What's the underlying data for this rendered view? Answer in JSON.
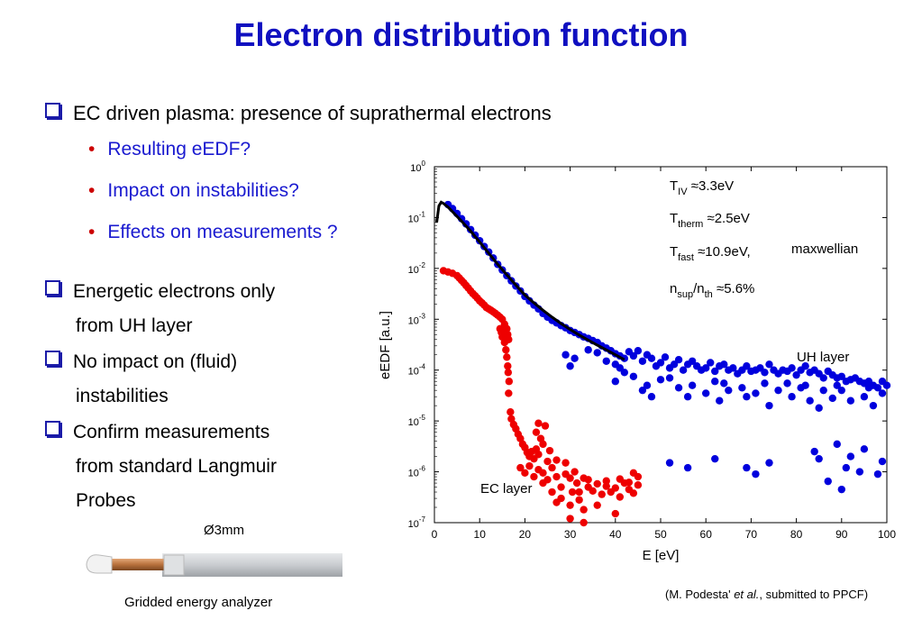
{
  "title": "Electron distribution function",
  "bullet1": "EC driven plasma: presence of suprathermal electrons",
  "sub_bullets": [
    "Resulting eEDF?",
    "Impact on instabilities?",
    "Effects on measurements ?"
  ],
  "left_bullets": [
    {
      "l1": "Energetic electrons only",
      "l2": "from UH layer"
    },
    {
      "l1": "No impact on (fluid)",
      "l2": "instabilities"
    },
    {
      "l1": "Confirm measurements",
      "l2": "from standard Langmuir",
      "l3": "Probes"
    }
  ],
  "probe_label": "Ø3mm",
  "probe_caption": "Gridded energy analyzer",
  "citation": {
    "pre": "(M. Podesta' ",
    "em": "et al.",
    "post": ", submitted to PPCF)"
  },
  "colors": {
    "title": "#1010c0",
    "uh": "#0000dd",
    "ec": "#ee0000",
    "fit": "#000000"
  },
  "chart_data": {
    "type": "scatter",
    "xlabel": "E  [eV]",
    "ylabel": "eEDF  [a.u.]",
    "xlim": [
      0,
      100
    ],
    "ylim": [
      1e-07,
      1
    ],
    "yscale": "log",
    "x_ticks": [
      "0",
      "10",
      "20",
      "30",
      "40",
      "50",
      "60",
      "70",
      "80",
      "90",
      "100"
    ],
    "y_ticks": [
      {
        "base": "10",
        "exp": "0"
      },
      {
        "base": "10",
        "exp": "-1"
      },
      {
        "base": "10",
        "exp": "-2"
      },
      {
        "base": "10",
        "exp": "-3"
      },
      {
        "base": "10",
        "exp": "-4"
      },
      {
        "base": "10",
        "exp": "-5"
      },
      {
        "base": "10",
        "exp": "-6"
      },
      {
        "base": "10",
        "exp": "-7"
      }
    ],
    "annotations": {
      "t_iv": {
        "base": "T",
        "sub": "IV",
        "val": " ≈3.3eV"
      },
      "t_therm": {
        "base": "T",
        "sub": "therm",
        "val": " ≈2.5eV"
      },
      "t_fast": {
        "base": "T",
        "sub": "fast",
        "val": " ≈10.9eV,"
      },
      "maxwellian": "maxwellian",
      "n_ratio": {
        "a": "n",
        "sub1": "sup",
        "mid": "/n",
        "sub2": "th",
        "val": " ≈5.6%"
      },
      "uh_layer": "UH layer",
      "ec_layer": "EC layer"
    },
    "series": [
      {
        "name": "UH layer",
        "color": "#0000dd",
        "points": [
          [
            3,
            0.18
          ],
          [
            4,
            0.15
          ],
          [
            5,
            0.12
          ],
          [
            6,
            0.095
          ],
          [
            7,
            0.075
          ],
          [
            8,
            0.058
          ],
          [
            9,
            0.045
          ],
          [
            10,
            0.035
          ],
          [
            11,
            0.027
          ],
          [
            12,
            0.021
          ],
          [
            13,
            0.016
          ],
          [
            14,
            0.012
          ],
          [
            15,
            0.0093
          ],
          [
            16,
            0.0072
          ],
          [
            17,
            0.0057
          ],
          [
            18,
            0.0045
          ],
          [
            19,
            0.0036
          ],
          [
            20,
            0.0028
          ],
          [
            21,
            0.0023
          ],
          [
            22,
            0.0019
          ],
          [
            23,
            0.0016
          ],
          [
            24,
            0.0013
          ],
          [
            25,
            0.0011
          ],
          [
            26,
            0.00095
          ],
          [
            27,
            0.00085
          ],
          [
            28,
            0.00075
          ],
          [
            29,
            0.00068
          ],
          [
            30,
            0.0006
          ],
          [
            31,
            0.00055
          ],
          [
            32,
            0.0005
          ],
          [
            33,
            0.00045
          ],
          [
            34,
            0.00042
          ],
          [
            35,
            0.00038
          ],
          [
            36,
            0.00035
          ],
          [
            37,
            0.0003
          ],
          [
            38,
            0.00027
          ],
          [
            39,
            0.00024
          ],
          [
            40,
            0.00021
          ],
          [
            41,
            0.00019
          ],
          [
            42,
            0.00017
          ],
          [
            29,
            0.0002
          ],
          [
            31,
            0.00017
          ],
          [
            34,
            0.00025
          ],
          [
            36,
            0.00022
          ],
          [
            38,
            0.00015
          ],
          [
            40,
            0.00013
          ],
          [
            41,
            0.00011
          ],
          [
            43,
            0.00023
          ],
          [
            44,
            0.00019
          ],
          [
            45,
            0.00024
          ],
          [
            46,
            0.00015
          ],
          [
            47,
            0.0002
          ],
          [
            48,
            0.00017
          ],
          [
            49,
            0.00012
          ],
          [
            50,
            0.00014
          ],
          [
            51,
            0.00018
          ],
          [
            52,
            0.00011
          ],
          [
            53,
            0.00013
          ],
          [
            54,
            0.00016
          ],
          [
            55,
            0.0001
          ],
          [
            56,
            0.00013
          ],
          [
            57,
            0.00015
          ],
          [
            58,
            0.00012
          ],
          [
            59,
            0.0001
          ],
          [
            60,
            0.00011
          ],
          [
            61,
            0.00014
          ],
          [
            62,
            9.5e-05
          ],
          [
            63,
            0.00012
          ],
          [
            64,
            0.00013
          ],
          [
            65,
            0.0001
          ],
          [
            66,
            0.00011
          ],
          [
            67,
            8.5e-05
          ],
          [
            68,
            0.0001
          ],
          [
            69,
            0.00012
          ],
          [
            70,
            9.5e-05
          ],
          [
            71,
            0.0001
          ],
          [
            72,
            0.00011
          ],
          [
            73,
            9e-05
          ],
          [
            74,
            0.00013
          ],
          [
            75,
            0.0001
          ],
          [
            76,
            8.5e-05
          ],
          [
            77,
            0.0001
          ],
          [
            78,
            9.5e-05
          ],
          [
            79,
            0.00011
          ],
          [
            80,
            8e-05
          ],
          [
            81,
            0.0001
          ],
          [
            82,
            0.00012
          ],
          [
            83,
            9e-05
          ],
          [
            84,
            0.0001
          ],
          [
            85,
            8.5e-05
          ],
          [
            86,
            7e-05
          ],
          [
            87,
            9.5e-05
          ],
          [
            88,
            8e-05
          ],
          [
            89,
            7e-05
          ],
          [
            90,
            7.5e-05
          ],
          [
            91,
            6e-05
          ],
          [
            92,
            6.5e-05
          ],
          [
            93,
            7e-05
          ],
          [
            94,
            6e-05
          ],
          [
            95,
            5.5e-05
          ],
          [
            96,
            6e-05
          ],
          [
            97,
            5e-05
          ],
          [
            98,
            4.5e-05
          ],
          [
            99,
            6e-05
          ],
          [
            100,
            5e-05
          ],
          [
            30,
            0.00012
          ],
          [
            40,
            6e-05
          ],
          [
            42,
            9e-05
          ],
          [
            46,
            4e-05
          ],
          [
            48,
            3e-05
          ],
          [
            52,
            7e-05
          ],
          [
            54,
            4.5e-05
          ],
          [
            56,
            3e-05
          ],
          [
            60,
            3.5e-05
          ],
          [
            62,
            6e-05
          ],
          [
            63,
            2.5e-05
          ],
          [
            65,
            4e-05
          ],
          [
            68,
            4.5e-05
          ],
          [
            71,
            3.5e-05
          ],
          [
            73,
            5.5e-05
          ],
          [
            74,
            2e-05
          ],
          [
            76,
            4e-05
          ],
          [
            79,
            3e-05
          ],
          [
            81,
            4.5e-05
          ],
          [
            83,
            2.5e-05
          ],
          [
            85,
            1.8e-05
          ],
          [
            86,
            4e-05
          ],
          [
            88,
            2.8e-05
          ],
          [
            90,
            4e-05
          ],
          [
            92,
            2.5e-05
          ],
          [
            95,
            3e-05
          ],
          [
            97,
            2e-05
          ],
          [
            99,
            3.5e-05
          ],
          [
            44,
            7.5e-05
          ],
          [
            47,
            5e-05
          ],
          [
            50,
            6.5e-05
          ],
          [
            57,
            5e-05
          ],
          [
            64,
            5.5e-05
          ],
          [
            69,
            3e-05
          ],
          [
            78,
            5.5e-05
          ],
          [
            82,
            5e-05
          ],
          [
            89,
            5e-05
          ],
          [
            96,
            4.5e-05
          ],
          [
            52,
            1.5e-06
          ],
          [
            56,
            1.2e-06
          ],
          [
            62,
            1.8e-06
          ],
          [
            69,
            1.2e-06
          ],
          [
            71,
            9e-07
          ],
          [
            74,
            1.5e-06
          ],
          [
            84,
            2.5e-06
          ],
          [
            85,
            1.8e-06
          ],
          [
            89,
            3.5e-06
          ],
          [
            91,
            1.2e-06
          ],
          [
            92,
            2e-06
          ],
          [
            94,
            1e-06
          ],
          [
            95,
            2.8e-06
          ],
          [
            98,
            9e-07
          ],
          [
            99,
            1.6e-06
          ],
          [
            90,
            4.5e-07
          ],
          [
            87,
            6.5e-07
          ]
        ]
      },
      {
        "name": "EC layer",
        "color": "#ee0000",
        "points": [
          [
            2,
            0.009
          ],
          [
            3,
            0.0085
          ],
          [
            4,
            0.008
          ],
          [
            5,
            0.0072
          ],
          [
            5.5,
            0.0065
          ],
          [
            6,
            0.0058
          ],
          [
            6.5,
            0.0052
          ],
          [
            7,
            0.0046
          ],
          [
            7.5,
            0.0041
          ],
          [
            8,
            0.0036
          ],
          [
            8.5,
            0.0032
          ],
          [
            9,
            0.0029
          ],
          [
            9.5,
            0.0026
          ],
          [
            10,
            0.0023
          ],
          [
            10.5,
            0.0021
          ],
          [
            11,
            0.0019
          ],
          [
            11.5,
            0.0017
          ],
          [
            12,
            0.0016
          ],
          [
            12.5,
            0.0015
          ],
          [
            13,
            0.0014
          ],
          [
            13.5,
            0.0013
          ],
          [
            14,
            0.0012
          ],
          [
            14.5,
            0.0011
          ],
          [
            15,
            0.001
          ],
          [
            15.5,
            0.0008
          ],
          [
            16,
            0.00065
          ],
          [
            16.2,
            0.0005
          ],
          [
            16.4,
            0.0004
          ],
          [
            14.5,
            0.00065
          ],
          [
            15,
            0.00045
          ],
          [
            14.8,
            0.00055
          ],
          [
            15.5,
            0.00035
          ],
          [
            15.8,
            0.00025
          ],
          [
            16,
            0.00018
          ],
          [
            16.2,
            0.00012
          ],
          [
            16.3,
            9e-05
          ],
          [
            16.5,
            6e-05
          ],
          [
            16.4,
            3.5e-05
          ],
          [
            16.8,
            1.5e-05
          ],
          [
            17,
            1.1e-05
          ],
          [
            17.5,
            8.5e-06
          ],
          [
            18,
            7e-06
          ],
          [
            18.5,
            5.5e-06
          ],
          [
            19,
            4.5e-06
          ],
          [
            19.5,
            3.5e-06
          ],
          [
            20,
            3e-06
          ],
          [
            20.5,
            2.4e-06
          ],
          [
            21,
            2e-06
          ],
          [
            21.5,
            2.5e-06
          ],
          [
            22,
            1.8e-06
          ],
          [
            22.5,
            2.8e-06
          ],
          [
            23,
            2.2e-06
          ],
          [
            24,
            3.5e-06
          ],
          [
            25,
            1.6e-06
          ],
          [
            25.5,
            2.6e-06
          ],
          [
            23.5,
            4.5e-06
          ],
          [
            22.5,
            6e-06
          ],
          [
            24.5,
            8e-06
          ],
          [
            23,
            9e-06
          ],
          [
            19,
            1.2e-06
          ],
          [
            20,
            9.5e-07
          ],
          [
            21,
            1.3e-06
          ],
          [
            22,
            8e-07
          ],
          [
            23,
            1.1e-06
          ],
          [
            24,
            9.5e-07
          ],
          [
            25,
            7e-07
          ],
          [
            26,
            1.2e-06
          ],
          [
            27,
            8e-07
          ],
          [
            28,
            5e-07
          ],
          [
            29,
            1.5e-06
          ],
          [
            30,
            7.5e-07
          ],
          [
            30.5,
            4e-07
          ],
          [
            31,
            1e-06
          ],
          [
            31.5,
            6e-07
          ],
          [
            32,
            4e-07
          ],
          [
            33,
            7.5e-07
          ],
          [
            34,
            5e-07
          ],
          [
            35,
            4.2e-07
          ],
          [
            36,
            5.8e-07
          ],
          [
            37,
            3.6e-07
          ],
          [
            38,
            5.2e-07
          ],
          [
            39,
            4e-07
          ],
          [
            40,
            4.8e-07
          ],
          [
            41,
            3.2e-07
          ],
          [
            42,
            6e-07
          ],
          [
            43,
            4.5e-07
          ],
          [
            44,
            3.8e-07
          ],
          [
            45,
            5.5e-07
          ],
          [
            45,
            8e-07
          ],
          [
            44,
            9.5e-07
          ],
          [
            26,
            4e-07
          ],
          [
            27,
            2.5e-07
          ],
          [
            28,
            3e-07
          ],
          [
            30,
            2.2e-07
          ],
          [
            32,
            2.8e-07
          ],
          [
            33,
            1.8e-07
          ],
          [
            36,
            2.2e-07
          ],
          [
            40,
            1.5e-07
          ],
          [
            30,
            1.2e-07
          ],
          [
            33,
            1e-07
          ],
          [
            24,
            6e-07
          ],
          [
            27,
            1.7e-06
          ],
          [
            29,
            9e-07
          ],
          [
            34,
            7e-07
          ],
          [
            38,
            6.6e-07
          ],
          [
            41,
            7.2e-07
          ],
          [
            43,
            6.2e-07
          ]
        ]
      }
    ],
    "fit_curve": [
      [
        0.5,
        0.08
      ],
      [
        1,
        0.17
      ],
      [
        1.5,
        0.2
      ],
      [
        2,
        0.19
      ],
      [
        3,
        0.16
      ],
      [
        4,
        0.13
      ],
      [
        6,
        0.085
      ],
      [
        8,
        0.054
      ],
      [
        10,
        0.033
      ],
      [
        12,
        0.02
      ],
      [
        14,
        0.012
      ],
      [
        16,
        0.0075
      ],
      [
        18,
        0.0047
      ],
      [
        20,
        0.003
      ],
      [
        22,
        0.0021
      ],
      [
        24,
        0.0015
      ],
      [
        26,
        0.0011
      ],
      [
        28,
        0.00082
      ],
      [
        30,
        0.00063
      ],
      [
        32,
        0.00049
      ],
      [
        34,
        0.00039
      ],
      [
        36,
        0.00031
      ],
      [
        38,
        0.00025
      ],
      [
        40,
        0.0002
      ],
      [
        42,
        0.00016
      ]
    ]
  }
}
